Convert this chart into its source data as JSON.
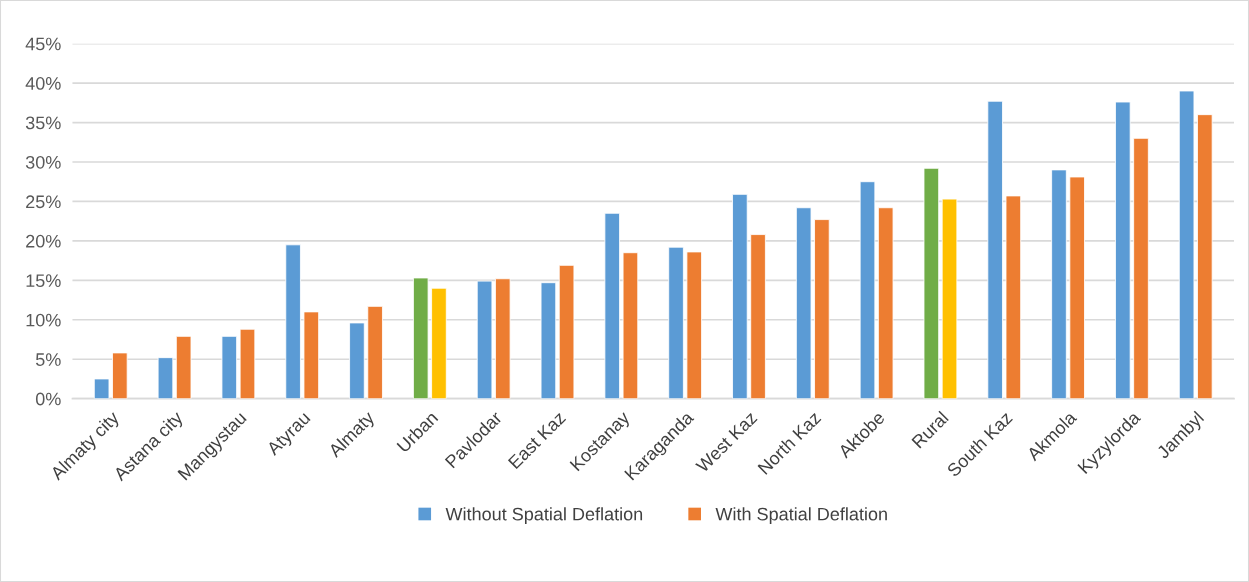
{
  "chart_data": {
    "type": "bar",
    "categories": [
      "Almaty city",
      "Astana city",
      "Mangystau",
      "Atyrau",
      "Almaty",
      "Urban",
      "Pavlodar",
      "East Kaz",
      "Kostanay",
      "Karaganda",
      "West Kaz",
      "North Kaz",
      "Aktobe",
      "Rural",
      "South Kaz",
      "Akmola",
      "Kyzylorda",
      "Jambyl"
    ],
    "series": [
      {
        "name": "Without Spatial Deflation",
        "color": "#5b9bd5",
        "colors": [
          "#5b9bd5",
          "#5b9bd5",
          "#5b9bd5",
          "#5b9bd5",
          "#5b9bd5",
          "#70ad47",
          "#5b9bd5",
          "#5b9bd5",
          "#5b9bd5",
          "#5b9bd5",
          "#5b9bd5",
          "#5b9bd5",
          "#5b9bd5",
          "#70ad47",
          "#5b9bd5",
          "#5b9bd5",
          "#5b9bd5",
          "#5b9bd5"
        ],
        "values": [
          2.5,
          5.2,
          7.9,
          19.5,
          9.6,
          15.3,
          14.9,
          14.7,
          23.5,
          19.2,
          25.9,
          24.2,
          27.5,
          29.2,
          37.7,
          29.0,
          37.6,
          39.0
        ]
      },
      {
        "name": "With Spatial Deflation",
        "color": "#ed7d31",
        "colors": [
          "#ed7d31",
          "#ed7d31",
          "#ed7d31",
          "#ed7d31",
          "#ed7d31",
          "#ffc000",
          "#ed7d31",
          "#ed7d31",
          "#ed7d31",
          "#ed7d31",
          "#ed7d31",
          "#ed7d31",
          "#ed7d31",
          "#ffc000",
          "#ed7d31",
          "#ed7d31",
          "#ed7d31",
          "#ed7d31"
        ],
        "values": [
          5.8,
          7.9,
          8.8,
          11.0,
          11.7,
          14.0,
          15.2,
          16.9,
          18.5,
          18.6,
          20.8,
          22.7,
          24.2,
          25.3,
          25.7,
          28.1,
          33.0,
          36.0
        ]
      }
    ],
    "ylim": [
      0,
      45
    ],
    "yticks": [
      {
        "value": 0,
        "label": "0%"
      },
      {
        "value": 5,
        "label": "5%"
      },
      {
        "value": 10,
        "label": "10%"
      },
      {
        "value": 15,
        "label": "15%"
      },
      {
        "value": 20,
        "label": "20%"
      },
      {
        "value": 25,
        "label": "25%"
      },
      {
        "value": 30,
        "label": "30%"
      },
      {
        "value": 35,
        "label": "35%"
      },
      {
        "value": 40,
        "label": "40%"
      },
      {
        "value": 45,
        "label": "45%"
      }
    ],
    "grid": "y",
    "legend": "bottom"
  }
}
